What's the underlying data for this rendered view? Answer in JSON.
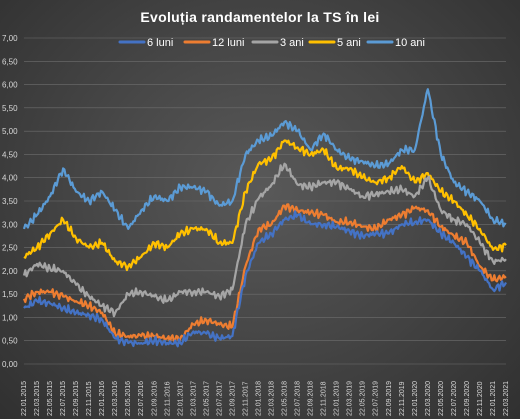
{
  "chart_data": {
    "type": "line",
    "title": "Evoluția randamentelor la TS în lei",
    "xlabel": "",
    "ylabel": "",
    "ylim": [
      0,
      7
    ],
    "yticks": [
      "0,00",
      "0,50",
      "1,00",
      "1,50",
      "2,00",
      "2,50",
      "3,00",
      "3,50",
      "4,00",
      "4,50",
      "5,00",
      "5,50",
      "6,00",
      "6,50",
      "7,00"
    ],
    "grid": true,
    "legend_position": "top",
    "x": [
      "22.01.2015",
      "22.03.2015",
      "22.05.2015",
      "22.07.2015",
      "22.09.2015",
      "22.11.2015",
      "22.01.2016",
      "22.03.2016",
      "22.05.2016",
      "22.07.2016",
      "22.09.2016",
      "22.11.2016",
      "22.01.2017",
      "22.03.2017",
      "22.05.2017",
      "22.07.2017",
      "22.09.2017",
      "22.11.2017",
      "22.01.2018",
      "22.03.2018",
      "22.05.2018",
      "22.07.2018",
      "22.09.2018",
      "22.11.2018",
      "22.01.2019",
      "22.03.2019",
      "22.05.2019",
      "22.07.2019",
      "22.09.2019",
      "22.11.2019",
      "22.01.2020",
      "22.03.2020",
      "22.05.2020",
      "22.07.2020",
      "22.09.2020",
      "22.11.2020",
      "22.01.2021",
      "22.03.2021"
    ],
    "series": [
      {
        "name": "6 luni",
        "color": "#4472c4",
        "values": [
          1.2,
          1.35,
          1.3,
          1.2,
          1.1,
          1.05,
          0.95,
          0.55,
          0.45,
          0.45,
          0.5,
          0.45,
          0.45,
          0.7,
          0.65,
          0.55,
          0.6,
          1.9,
          2.6,
          2.8,
          3.1,
          3.2,
          3.0,
          3.0,
          2.95,
          2.85,
          2.75,
          2.8,
          2.8,
          3.0,
          3.05,
          3.1,
          2.8,
          2.6,
          2.3,
          2.0,
          1.6,
          1.75
        ]
      },
      {
        "name": "12 luni",
        "color": "#ed7d31",
        "values": [
          1.4,
          1.55,
          1.55,
          1.45,
          1.35,
          1.25,
          1.1,
          0.65,
          0.6,
          0.6,
          0.6,
          0.55,
          0.55,
          0.85,
          0.95,
          0.85,
          0.8,
          2.1,
          2.9,
          3.0,
          3.4,
          3.3,
          3.25,
          3.2,
          3.05,
          3.05,
          2.95,
          2.9,
          3.1,
          3.2,
          3.35,
          3.3,
          2.95,
          2.75,
          2.6,
          2.1,
          1.8,
          1.88
        ]
      },
      {
        "name": "3 ani",
        "color": "#a5a5a5",
        "values": [
          1.9,
          2.15,
          2.05,
          2.0,
          1.7,
          1.45,
          1.25,
          1.1,
          1.5,
          1.55,
          1.45,
          1.35,
          1.55,
          1.55,
          1.55,
          1.45,
          1.6,
          3.0,
          3.55,
          3.85,
          4.3,
          3.85,
          3.8,
          3.9,
          3.9,
          3.75,
          3.6,
          3.65,
          3.7,
          3.75,
          3.6,
          4.0,
          3.3,
          3.1,
          3.0,
          2.6,
          2.2,
          2.25
        ]
      },
      {
        "name": "5 ani",
        "color": "#ffc000",
        "values": [
          2.3,
          2.5,
          2.8,
          3.1,
          2.7,
          2.5,
          2.6,
          2.2,
          2.1,
          2.3,
          2.6,
          2.5,
          2.8,
          2.9,
          2.9,
          2.6,
          2.6,
          3.7,
          4.3,
          4.4,
          4.8,
          4.65,
          4.5,
          4.6,
          4.2,
          4.2,
          4.0,
          3.9,
          4.0,
          4.25,
          3.9,
          4.1,
          3.7,
          3.5,
          3.2,
          2.9,
          2.45,
          2.55
        ]
      },
      {
        "name": "10 ani",
        "color": "#5b9bd5",
        "values": [
          2.9,
          3.2,
          3.6,
          4.2,
          3.7,
          3.5,
          3.7,
          3.3,
          2.9,
          3.3,
          3.6,
          3.5,
          3.8,
          3.8,
          3.7,
          3.4,
          3.5,
          4.5,
          4.8,
          4.9,
          5.2,
          5.0,
          4.6,
          4.95,
          4.6,
          4.4,
          4.35,
          4.25,
          4.3,
          4.6,
          4.6,
          5.9,
          4.5,
          3.9,
          3.7,
          3.5,
          3.1,
          3.0
        ]
      }
    ]
  }
}
